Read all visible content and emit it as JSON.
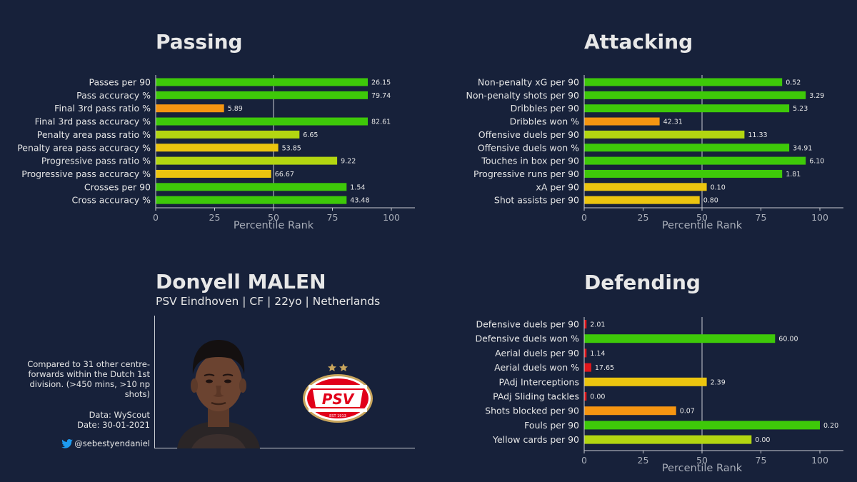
{
  "colors": {
    "background": "#17213a",
    "percentile_scale": [
      "#e0161b",
      "#f59511",
      "#ecc50f",
      "#b3d611",
      "#3ec909"
    ]
  },
  "player": {
    "name": "Donyell MALEN",
    "subtitle": "PSV Eindhoven | CF | 22yo | Netherlands",
    "note": "Compared to 31 other centre-forwards within the Dutch 1st division. (>450 mins, >10 np shots)",
    "data_line": "Data: WyScout",
    "date_line": "Date: 30-01-2021",
    "twitter": "@sebestyendaniel",
    "photo_icon": "player-portrait",
    "logo_icon": "psv-crest",
    "logo_text": "PSV",
    "logo_year": "EST 1913"
  },
  "chart_data": [
    {
      "type": "bar",
      "orientation": "horizontal",
      "title": "Passing",
      "xlabel": "Percentile Rank",
      "xlim": [
        0,
        100
      ],
      "xticks": [
        0,
        25,
        50,
        75,
        100
      ],
      "reference_line": 50,
      "categories": [
        "Passes per 90",
        "Pass accuracy %",
        "Final 3rd pass ratio %",
        "Final 3rd pass accuracy %",
        "Penalty area pass ratio %",
        "Penalty area pass accuracy %",
        "Progressive pass ratio %",
        "Progressive pass accuracy %",
        "Crosses per 90",
        "Cross accuracy %"
      ],
      "values": [
        90,
        90,
        29,
        90,
        61,
        52,
        77,
        49,
        81,
        81
      ],
      "labels": [
        "26.15",
        "79.74",
        "5.89",
        "82.61",
        "6.65",
        "53.85",
        "9.22",
        "66.67",
        "1.54",
        "43.48"
      ]
    },
    {
      "type": "bar",
      "orientation": "horizontal",
      "title": "Attacking",
      "xlabel": "Percentile Rank",
      "xlim": [
        0,
        100
      ],
      "xticks": [
        0,
        25,
        50,
        75,
        100
      ],
      "reference_line": 50,
      "categories": [
        "Non-penalty xG per 90",
        "Non-penalty shots per 90",
        "Dribbles per 90",
        "Dribbles won %",
        "Offensive duels per 90",
        "Offensive duels won %",
        "Touches in box per 90",
        "Progressive runs per 90",
        "xA per 90",
        "Shot assists per 90"
      ],
      "values": [
        84,
        94,
        87,
        32,
        68,
        87,
        94,
        84,
        52,
        49
      ],
      "labels": [
        "0.52",
        "3.29",
        "5.23",
        "42.31",
        "11.33",
        "34.91",
        "6.10",
        "1.81",
        "0.10",
        "0.80"
      ]
    },
    {
      "type": "bar",
      "orientation": "horizontal",
      "title": "Defending",
      "xlabel": "Percentile Rank",
      "xlim": [
        0,
        100
      ],
      "xticks": [
        0,
        25,
        50,
        75,
        100
      ],
      "reference_line": 50,
      "categories": [
        "Defensive duels per 90",
        "Defensive duels won %",
        "Aerial duels per 90",
        "Aerial duels won %",
        "PAdj Interceptions",
        "PAdj Sliding tackles",
        "Shots blocked per 90",
        "Fouls per 90",
        "Yellow cards per 90"
      ],
      "values": [
        1,
        81,
        1,
        3,
        52,
        1,
        39,
        100,
        71
      ],
      "labels": [
        "2.01",
        "60.00",
        "1.14",
        "17.65",
        "2.39",
        "0.00",
        "0.07",
        "0.20",
        "0.00"
      ]
    }
  ]
}
